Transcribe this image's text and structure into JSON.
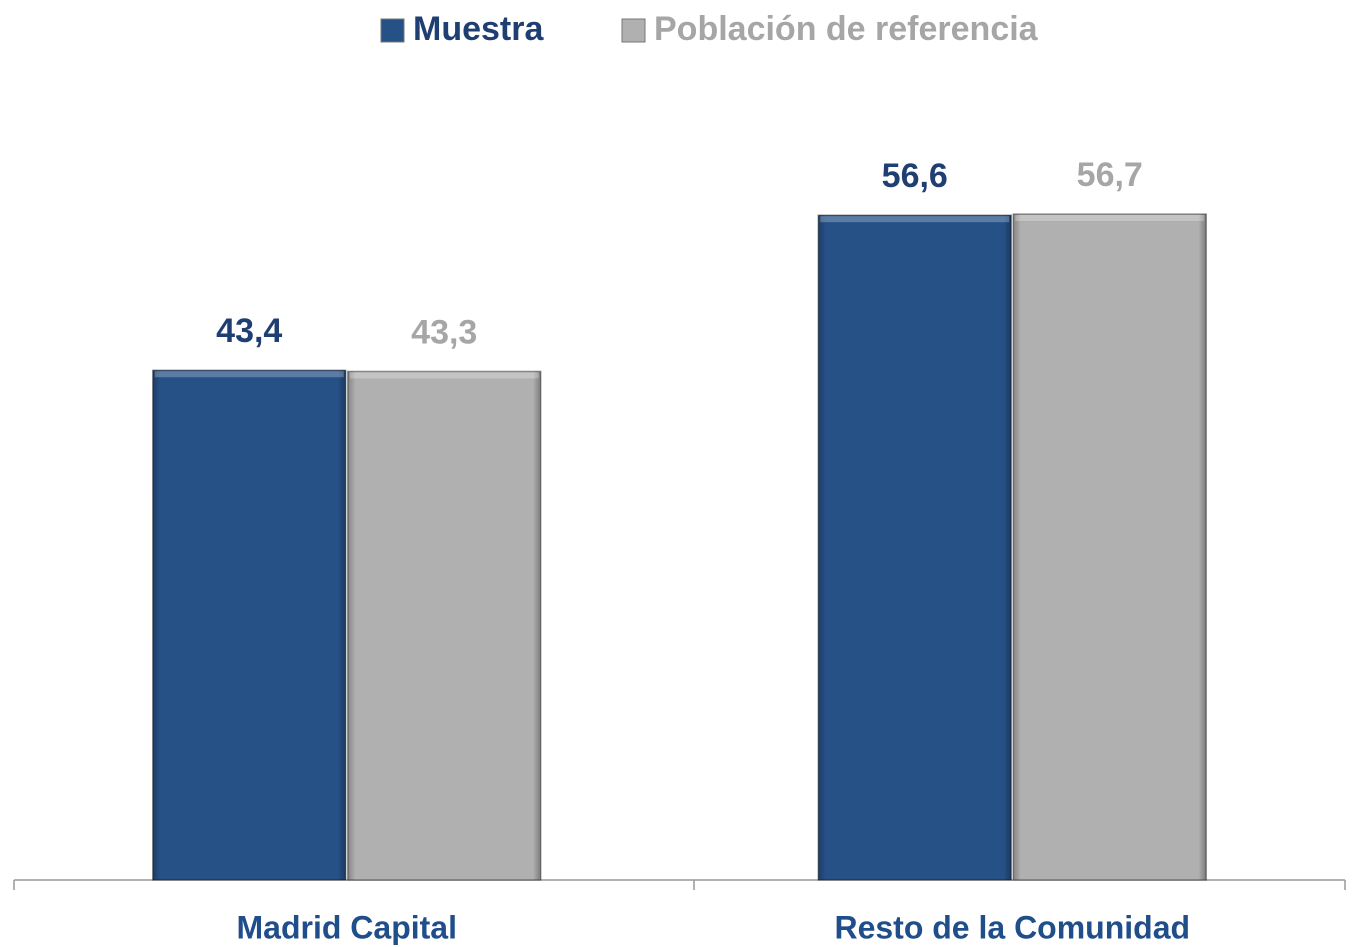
{
  "chart_data": {
    "type": "bar",
    "categories": [
      "Madrid Capital",
      "Resto de la Comunidad"
    ],
    "series": [
      {
        "name": "Muestra",
        "color": "#265187",
        "label_color": "#1f3f73",
        "values": [
          43.4,
          56.6
        ],
        "value_labels": [
          "43,4",
          "56,6"
        ]
      },
      {
        "name": "Población de referencia",
        "color": "#b0b0b0",
        "label_color": "#a6a6a6",
        "values": [
          43.3,
          56.7
        ],
        "value_labels": [
          "43,3",
          "56,7"
        ]
      }
    ],
    "legend": "top"
  }
}
